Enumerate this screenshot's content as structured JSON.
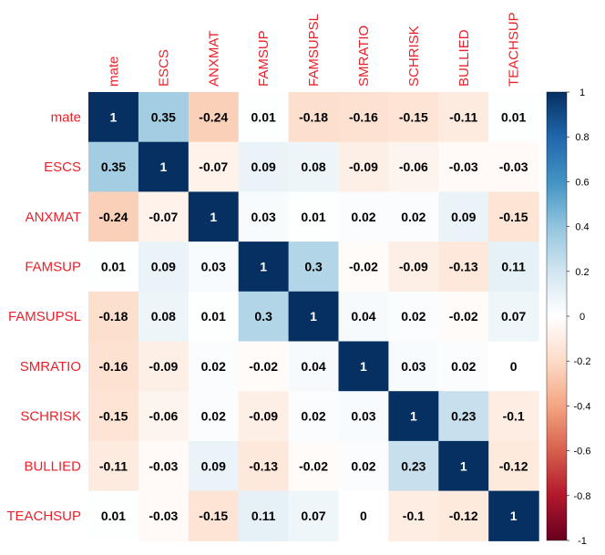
{
  "chart_data": {
    "type": "heatmap",
    "variables": [
      "mate",
      "ESCS",
      "ANXMAT",
      "FAMSUP",
      "FAMSUPSL",
      "SMRATIO",
      "SCHRISK",
      "BULLIED",
      "TEACHSUP"
    ],
    "matrix": [
      [
        1,
        0.35,
        -0.24,
        0.01,
        -0.18,
        -0.16,
        -0.15,
        -0.11,
        0.01
      ],
      [
        0.35,
        1,
        -0.07,
        0.09,
        0.08,
        -0.09,
        -0.06,
        -0.03,
        -0.03
      ],
      [
        -0.24,
        -0.07,
        1,
        0.03,
        0.01,
        0.02,
        0.02,
        0.09,
        -0.15
      ],
      [
        0.01,
        0.09,
        0.03,
        1,
        0.3,
        -0.02,
        -0.09,
        -0.13,
        0.11
      ],
      [
        -0.18,
        0.08,
        0.01,
        0.3,
        1,
        0.04,
        0.02,
        -0.02,
        0.07
      ],
      [
        -0.16,
        -0.09,
        0.02,
        -0.02,
        0.04,
        1,
        0.03,
        0.02,
        0
      ],
      [
        -0.15,
        -0.06,
        0.02,
        -0.09,
        0.02,
        0.03,
        1,
        0.23,
        -0.1
      ],
      [
        -0.11,
        -0.03,
        0.09,
        -0.13,
        -0.02,
        0.02,
        0.23,
        1,
        -0.12
      ],
      [
        0.01,
        -0.03,
        -0.15,
        0.11,
        0.07,
        0,
        -0.1,
        -0.12,
        1
      ]
    ],
    "color_scale": {
      "range": [
        -1,
        1
      ],
      "ticks": [
        1,
        0.8,
        0.6,
        0.4,
        0.2,
        0,
        -0.2,
        -0.4,
        -0.6,
        -0.8,
        -1
      ],
      "colors": [
        "#67001f",
        "#b2182b",
        "#d6604d",
        "#f4a582",
        "#fddbc7",
        "#ffffff",
        "#d1e5f0",
        "#92c5de",
        "#4393c3",
        "#2166ac",
        "#053061"
      ],
      "placement": "right"
    },
    "label_color": "#e8222a",
    "grid": false
  }
}
